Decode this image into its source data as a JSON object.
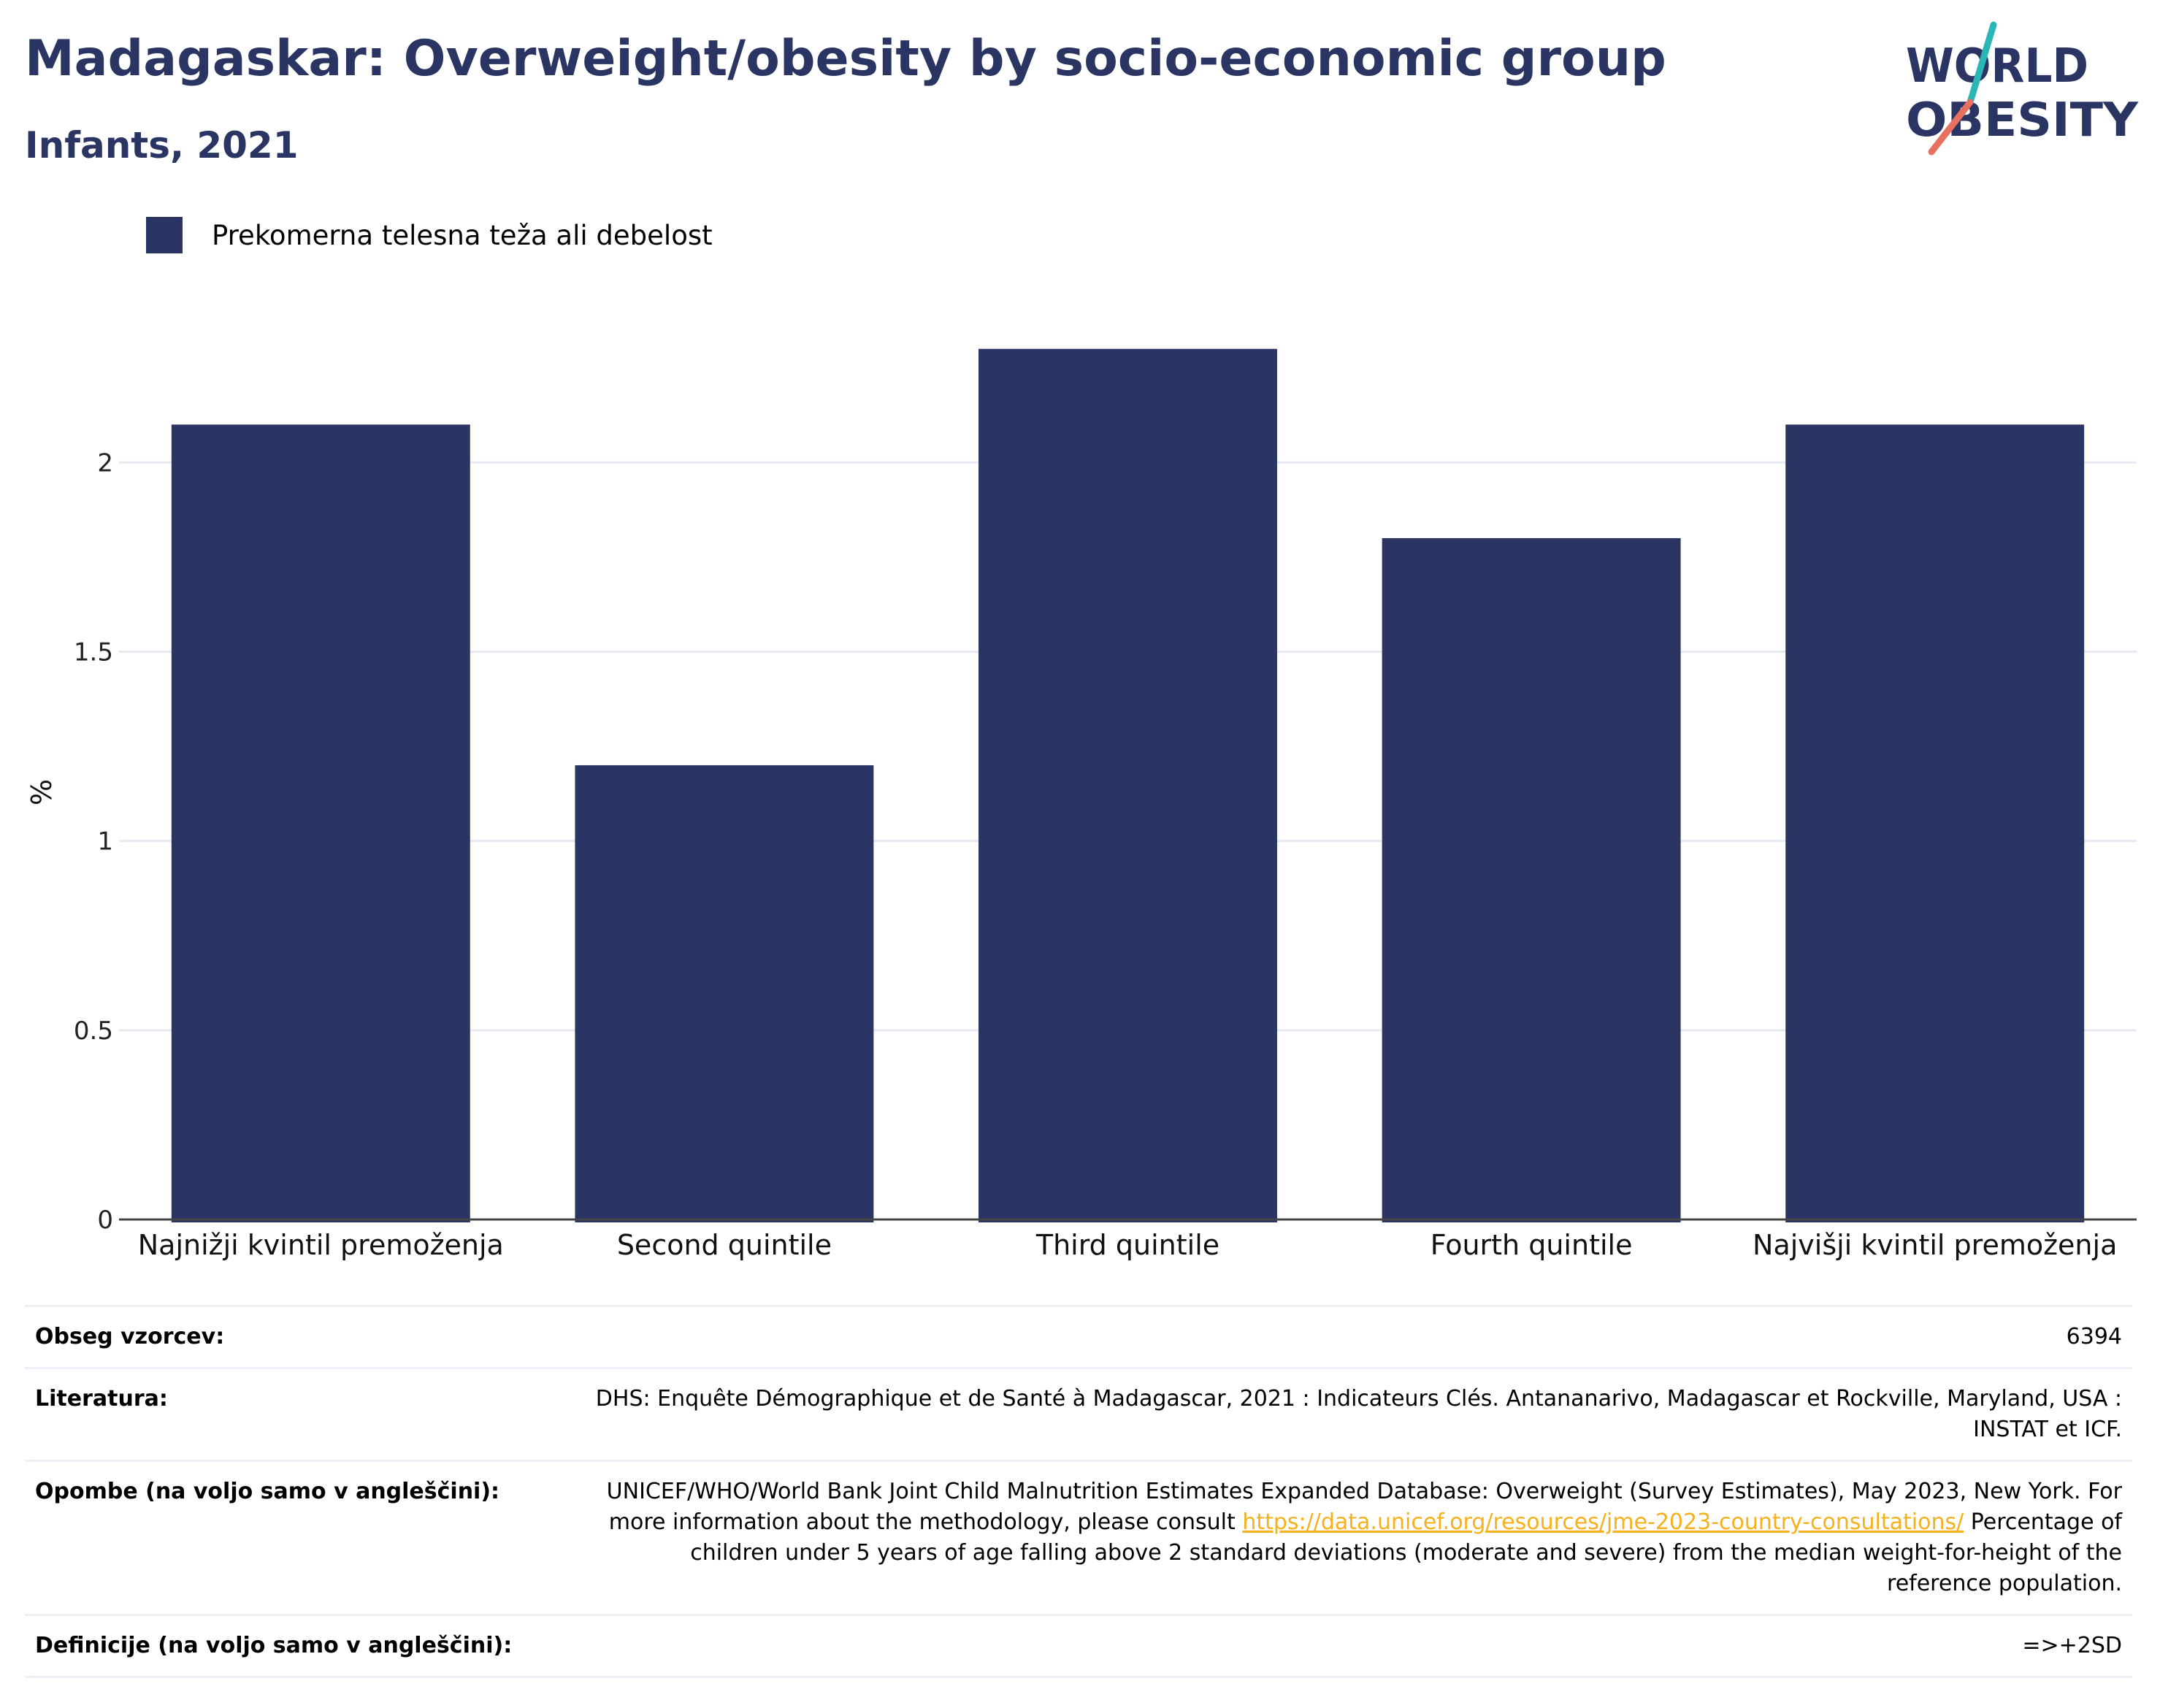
{
  "header": {
    "title": "Madagaskar: Overweight/obesity by socio-economic group",
    "subtitle": "Infants, 2021"
  },
  "logo": {
    "line1": "WORLD",
    "line2": "OBESITY",
    "colors": {
      "text": "#2a3563",
      "slash_top": "#2ab6b6",
      "slash_bottom": "#e8705f"
    }
  },
  "legend": {
    "label": "Prekomerna telesna teža ali debelost",
    "color": "#2a3563"
  },
  "chart_data": {
    "type": "bar",
    "categories": [
      "Najnižji kvintil premoženja",
      "Second quintile",
      "Third quintile",
      "Fourth quintile",
      "Najvišji kvintil premoženja"
    ],
    "series": [
      {
        "name": "Prekomerna telesna teža ali debelost",
        "values": [
          2.1,
          1.2,
          2.3,
          1.8,
          2.1
        ],
        "color": "#2a3563"
      }
    ],
    "ylabel": "%",
    "xlabel": "",
    "ylim": [
      0,
      2.45
    ],
    "yticks": [
      0,
      0.5,
      1,
      1.5,
      2
    ],
    "ytick_labels": [
      "0",
      "0.5",
      "1",
      "1.5",
      "2"
    ],
    "grid": true,
    "legend_position": "top-left"
  },
  "info": {
    "rows": [
      {
        "label": "Obseg vzorcev:",
        "value": "6394"
      },
      {
        "label": "Literatura:",
        "value": "DHS: Enquête Démographique et de Santé à Madagascar, 2021 : Indicateurs Clés. Antananarivo, Madagascar et Rockville, Maryland, USA : INSTAT et ICF."
      },
      {
        "label": "Opombe (na voljo samo v angleščini):",
        "value_before": "UNICEF/WHO/World Bank Joint Child Malnutrition Estimates Expanded Database: Overweight (Survey Estimates), May 2023, New York. For more information about the methodology, please consult ",
        "link": "https://data.unicef.org/resources/jme-2023-country-consultations/",
        "value_after": " Percentage of children under 5 years of age falling above 2 standard deviations (moderate and severe) from the median weight-for-height of the reference population."
      },
      {
        "label": "Definicije (na voljo samo v angleščini):",
        "value": "=>+2SD"
      }
    ]
  }
}
